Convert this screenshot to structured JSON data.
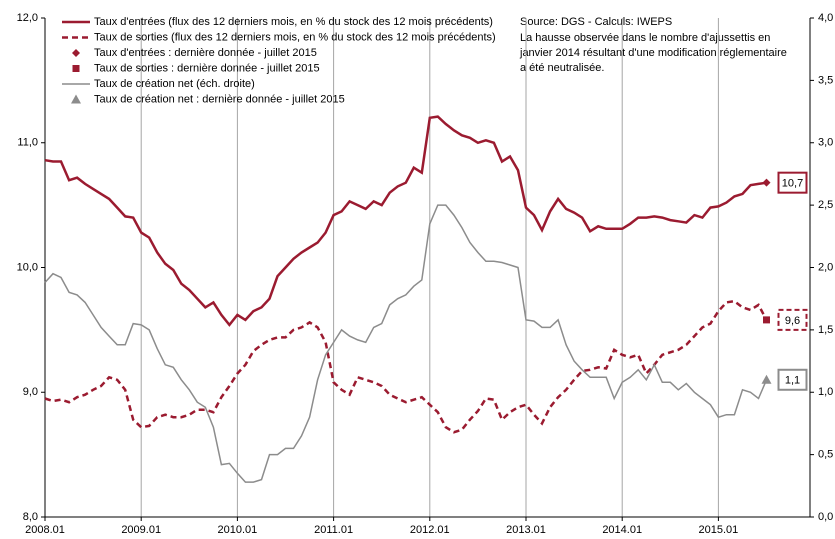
{
  "chart_data": {
    "type": "line",
    "source": "Source: DGS - Calculs: IWEPS",
    "annotation": [
      "La hausse observée dans le nombre d'ajussettis en",
      "janvier 2014 résultant d'une modification réglementaire",
      "a été neutralisée."
    ],
    "categories": [
      "2008.01",
      null,
      null,
      null,
      null,
      null,
      null,
      null,
      null,
      null,
      null,
      null,
      "2009.01",
      null,
      null,
      null,
      null,
      null,
      null,
      null,
      null,
      null,
      null,
      null,
      "2010.01",
      null,
      null,
      null,
      null,
      null,
      null,
      null,
      null,
      null,
      null,
      null,
      "2011.01",
      null,
      null,
      null,
      null,
      null,
      null,
      null,
      null,
      null,
      null,
      null,
      "2012.01",
      null,
      null,
      null,
      null,
      null,
      null,
      null,
      null,
      null,
      null,
      null,
      "2013.01",
      null,
      null,
      null,
      null,
      null,
      null,
      null,
      null,
      null,
      null,
      null,
      "2014.01",
      null,
      null,
      null,
      null,
      null,
      null,
      null,
      null,
      null,
      null,
      null,
      "2015.01",
      null,
      null,
      null,
      null,
      null,
      null
    ],
    "ylim": [
      8,
      12
    ],
    "yticks": [
      {
        "value": 8,
        "label": "8,0"
      },
      {
        "value": 9,
        "label": "9,0"
      },
      {
        "value": 10,
        "label": "10,0"
      },
      {
        "value": 11,
        "label": "11,0"
      },
      {
        "value": 12,
        "label": "12,0"
      }
    ],
    "y2lim": [
      0,
      4
    ],
    "y2ticks": [
      {
        "value": 0,
        "label": "0,0"
      },
      {
        "value": 0.5,
        "label": "0,5"
      },
      {
        "value": 1,
        "label": "1,0"
      },
      {
        "value": 1.5,
        "label": "1,5"
      },
      {
        "value": 2,
        "label": "2,0"
      },
      {
        "value": 2.5,
        "label": "2,5"
      },
      {
        "value": 3,
        "label": "3,0"
      },
      {
        "value": 3.5,
        "label": "3,5"
      },
      {
        "value": 4,
        "label": "4,0"
      }
    ],
    "grid": "vertical",
    "series": [
      {
        "name": "Taux d'entrées (flux des 12 derniers mois, en % du stock des 12 mois précédents)",
        "color": "#9b1b30",
        "style": "solid",
        "axis": "y",
        "values": [
          10.86,
          10.85,
          10.85,
          10.7,
          10.72,
          10.67,
          10.63,
          10.59,
          10.55,
          10.48,
          10.41,
          10.4,
          10.28,
          10.24,
          10.12,
          10.03,
          9.98,
          9.87,
          9.82,
          9.75,
          9.68,
          9.72,
          9.62,
          9.54,
          9.62,
          9.58,
          9.65,
          9.68,
          9.75,
          9.93,
          10.0,
          10.07,
          10.12,
          10.16,
          10.2,
          10.28,
          10.42,
          10.45,
          10.53,
          10.5,
          10.47,
          10.53,
          10.5,
          10.6,
          10.65,
          10.68,
          10.8,
          10.76,
          11.2,
          11.21,
          11.15,
          11.1,
          11.06,
          11.04,
          11.0,
          11.02,
          11.0,
          10.85,
          10.89,
          10.78,
          10.48,
          10.42,
          10.3,
          10.45,
          10.55,
          10.47,
          10.44,
          10.4,
          10.29,
          10.33,
          10.31,
          10.31,
          10.31,
          10.35,
          10.4,
          10.4,
          10.41,
          10.4,
          10.38,
          10.37,
          10.36,
          10.42,
          10.4,
          10.48,
          10.49,
          10.52,
          10.57,
          10.59,
          10.66,
          10.67,
          10.68
        ]
      },
      {
        "name": "Taux de sorties (flux des 12 derniers mois, en % du stock des 12 mois précédents)",
        "color": "#9b1b30",
        "style": "dashed",
        "axis": "y",
        "values": [
          8.95,
          8.93,
          8.94,
          8.92,
          8.96,
          8.98,
          9.02,
          9.05,
          9.12,
          9.1,
          9.02,
          8.78,
          8.72,
          8.73,
          8.8,
          8.82,
          8.8,
          8.8,
          8.82,
          8.86,
          8.86,
          8.84,
          8.96,
          9.05,
          9.15,
          9.22,
          9.33,
          9.38,
          9.42,
          9.44,
          9.44,
          9.5,
          9.52,
          9.56,
          9.52,
          9.4,
          9.08,
          9.02,
          8.98,
          9.12,
          9.1,
          9.08,
          9.05,
          8.98,
          8.95,
          8.92,
          8.94,
          8.96,
          8.9,
          8.84,
          8.72,
          8.68,
          8.7,
          8.78,
          8.85,
          8.95,
          8.94,
          8.78,
          8.84,
          8.88,
          8.9,
          8.82,
          8.75,
          8.88,
          8.96,
          9.02,
          9.1,
          9.17,
          9.18,
          9.2,
          9.19,
          9.34,
          9.3,
          9.28,
          9.3,
          9.15,
          9.22,
          9.3,
          9.32,
          9.34,
          9.38,
          9.45,
          9.52,
          9.55,
          9.65,
          9.72,
          9.73,
          9.68,
          9.66,
          9.7,
          9.58
        ]
      },
      {
        "name": "Taux d'entrées : dernière donnée - juillet 2015",
        "color": "#9b1b30",
        "style": "diamond",
        "axis": "y",
        "values": [
          null,
          null,
          null,
          null,
          null,
          null,
          null,
          null,
          null,
          null,
          null,
          null,
          null,
          null,
          null,
          null,
          null,
          null,
          null,
          null,
          null,
          null,
          null,
          null,
          null,
          null,
          null,
          null,
          null,
          null,
          null,
          null,
          null,
          null,
          null,
          null,
          null,
          null,
          null,
          null,
          null,
          null,
          null,
          null,
          null,
          null,
          null,
          null,
          null,
          null,
          null,
          null,
          null,
          null,
          null,
          null,
          null,
          null,
          null,
          null,
          null,
          null,
          null,
          null,
          null,
          null,
          null,
          null,
          null,
          null,
          null,
          null,
          null,
          null,
          null,
          null,
          null,
          null,
          null,
          null,
          null,
          null,
          null,
          null,
          null,
          null,
          null,
          null,
          null,
          null,
          10.68
        ],
        "value_labels": [
          null,
          null,
          null,
          null,
          null,
          null,
          null,
          null,
          null,
          null,
          null,
          null,
          null,
          null,
          null,
          null,
          null,
          null,
          null,
          null,
          null,
          null,
          null,
          null,
          null,
          null,
          null,
          null,
          null,
          null,
          null,
          null,
          null,
          null,
          null,
          null,
          null,
          null,
          null,
          null,
          null,
          null,
          null,
          null,
          null,
          null,
          null,
          null,
          null,
          null,
          null,
          null,
          null,
          null,
          null,
          null,
          null,
          null,
          null,
          null,
          null,
          null,
          null,
          null,
          null,
          null,
          null,
          null,
          null,
          null,
          null,
          null,
          null,
          null,
          null,
          null,
          null,
          null,
          null,
          null,
          null,
          null,
          null,
          null,
          null,
          null,
          null,
          null,
          null,
          null,
          "10,7"
        ]
      },
      {
        "name": "Taux de sorties : dernière donnée - juillet 2015",
        "color": "#9b1b30",
        "style": "square",
        "axis": "y",
        "box_dashed": true,
        "values": [
          null,
          null,
          null,
          null,
          null,
          null,
          null,
          null,
          null,
          null,
          null,
          null,
          null,
          null,
          null,
          null,
          null,
          null,
          null,
          null,
          null,
          null,
          null,
          null,
          null,
          null,
          null,
          null,
          null,
          null,
          null,
          null,
          null,
          null,
          null,
          null,
          null,
          null,
          null,
          null,
          null,
          null,
          null,
          null,
          null,
          null,
          null,
          null,
          null,
          null,
          null,
          null,
          null,
          null,
          null,
          null,
          null,
          null,
          null,
          null,
          null,
          null,
          null,
          null,
          null,
          null,
          null,
          null,
          null,
          null,
          null,
          null,
          null,
          null,
          null,
          null,
          null,
          null,
          null,
          null,
          null,
          null,
          null,
          null,
          null,
          null,
          null,
          null,
          null,
          null,
          9.58
        ],
        "value_labels": [
          null,
          null,
          null,
          null,
          null,
          null,
          null,
          null,
          null,
          null,
          null,
          null,
          null,
          null,
          null,
          null,
          null,
          null,
          null,
          null,
          null,
          null,
          null,
          null,
          null,
          null,
          null,
          null,
          null,
          null,
          null,
          null,
          null,
          null,
          null,
          null,
          null,
          null,
          null,
          null,
          null,
          null,
          null,
          null,
          null,
          null,
          null,
          null,
          null,
          null,
          null,
          null,
          null,
          null,
          null,
          null,
          null,
          null,
          null,
          null,
          null,
          null,
          null,
          null,
          null,
          null,
          null,
          null,
          null,
          null,
          null,
          null,
          null,
          null,
          null,
          null,
          null,
          null,
          null,
          null,
          null,
          null,
          null,
          null,
          null,
          null,
          null,
          null,
          null,
          null,
          "9,6"
        ]
      },
      {
        "name": "Taux de création net (éch. droite)",
        "color": "#8c8c8c",
        "style": "solid",
        "axis": "y2",
        "values": [
          1.88,
          1.95,
          1.92,
          1.8,
          1.78,
          1.72,
          1.62,
          1.52,
          1.45,
          1.38,
          1.38,
          1.55,
          1.54,
          1.5,
          1.35,
          1.22,
          1.2,
          1.1,
          1.02,
          0.92,
          0.88,
          0.72,
          0.42,
          0.43,
          0.35,
          0.28,
          0.28,
          0.3,
          0.5,
          0.5,
          0.55,
          0.55,
          0.65,
          0.8,
          1.1,
          1.3,
          1.4,
          1.5,
          1.45,
          1.42,
          1.4,
          1.52,
          1.55,
          1.7,
          1.75,
          1.78,
          1.85,
          1.9,
          2.35,
          2.5,
          2.5,
          2.42,
          2.32,
          2.2,
          2.12,
          2.05,
          2.05,
          2.04,
          2.02,
          2.0,
          1.58,
          1.57,
          1.52,
          1.52,
          1.58,
          1.38,
          1.25,
          1.18,
          1.12,
          1.12,
          1.12,
          0.95,
          1.08,
          1.12,
          1.18,
          1.1,
          1.22,
          1.08,
          1.08,
          1.02,
          1.07,
          1.0,
          0.95,
          0.9,
          0.8,
          0.82,
          0.82,
          1.02,
          1.0,
          0.95,
          1.1
        ]
      },
      {
        "name": "Taux de création net : dernière donnée - juillet 2015",
        "color": "#8c8c8c",
        "style": "triangle",
        "axis": "y2",
        "values": [
          null,
          null,
          null,
          null,
          null,
          null,
          null,
          null,
          null,
          null,
          null,
          null,
          null,
          null,
          null,
          null,
          null,
          null,
          null,
          null,
          null,
          null,
          null,
          null,
          null,
          null,
          null,
          null,
          null,
          null,
          null,
          null,
          null,
          null,
          null,
          null,
          null,
          null,
          null,
          null,
          null,
          null,
          null,
          null,
          null,
          null,
          null,
          null,
          null,
          null,
          null,
          null,
          null,
          null,
          null,
          null,
          null,
          null,
          null,
          null,
          null,
          null,
          null,
          null,
          null,
          null,
          null,
          null,
          null,
          null,
          null,
          null,
          null,
          null,
          null,
          null,
          null,
          null,
          null,
          null,
          null,
          null,
          null,
          null,
          null,
          null,
          null,
          null,
          null,
          null,
          1.1
        ],
        "value_labels": [
          null,
          null,
          null,
          null,
          null,
          null,
          null,
          null,
          null,
          null,
          null,
          null,
          null,
          null,
          null,
          null,
          null,
          null,
          null,
          null,
          null,
          null,
          null,
          null,
          null,
          null,
          null,
          null,
          null,
          null,
          null,
          null,
          null,
          null,
          null,
          null,
          null,
          null,
          null,
          null,
          null,
          null,
          null,
          null,
          null,
          null,
          null,
          null,
          null,
          null,
          null,
          null,
          null,
          null,
          null,
          null,
          null,
          null,
          null,
          null,
          null,
          null,
          null,
          null,
          null,
          null,
          null,
          null,
          null,
          null,
          null,
          null,
          null,
          null,
          null,
          null,
          null,
          null,
          null,
          null,
          null,
          null,
          null,
          null,
          null,
          null,
          null,
          null,
          null,
          null,
          "1,1"
        ]
      }
    ]
  }
}
